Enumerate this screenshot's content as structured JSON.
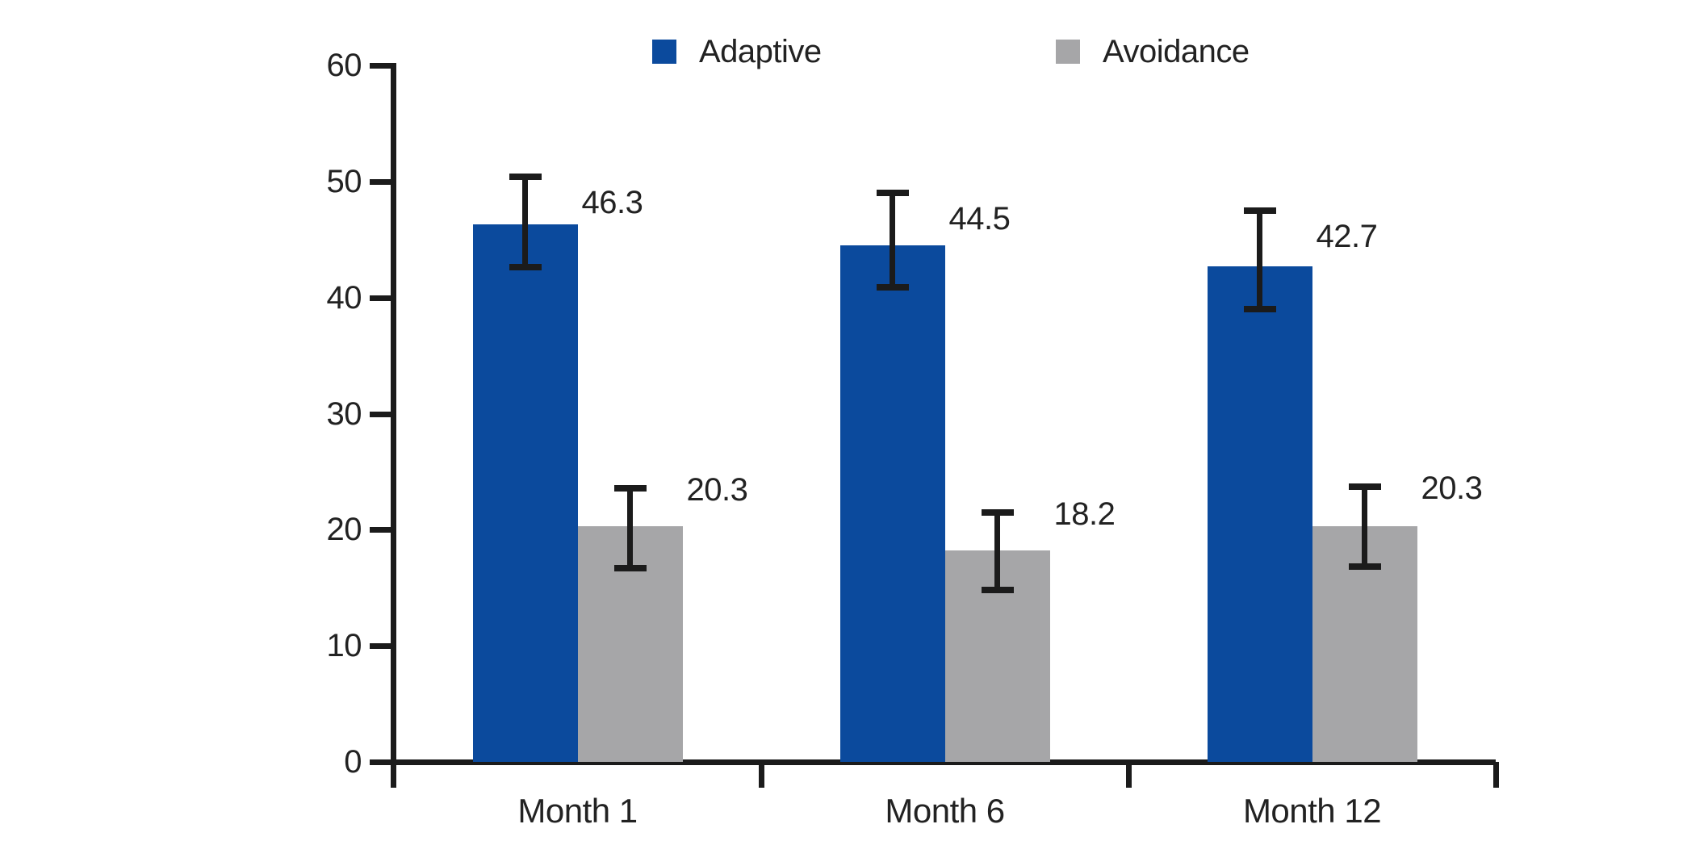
{
  "chart_data": {
    "type": "bar",
    "title": "",
    "xlabel": "",
    "ylabel": "",
    "categories": [
      "Month 1",
      "Month 6",
      "Month 12"
    ],
    "series": [
      {
        "name": "Adaptive",
        "color": "#0b4a9d",
        "values": [
          46.3,
          44.5,
          42.7
        ],
        "error_low": [
          42.6,
          40.9,
          39.0
        ],
        "error_high": [
          50.4,
          49.0,
          47.5
        ]
      },
      {
        "name": "Avoidance",
        "color": "#a6a6a8",
        "values": [
          20.3,
          18.2,
          20.3
        ],
        "error_low": [
          16.7,
          14.8,
          16.8
        ],
        "error_high": [
          23.6,
          21.5,
          23.7
        ]
      }
    ],
    "value_labels": [
      [
        "46.3",
        "44.5",
        "42.7"
      ],
      [
        "20.3",
        "18.2",
        "20.3"
      ]
    ],
    "ylim": [
      0,
      60
    ],
    "yticks": [
      "0",
      "10",
      "20",
      "30",
      "40",
      "50",
      "60"
    ],
    "grid": false,
    "error_bars": true,
    "legend_position": "top"
  },
  "colors": {
    "adaptive": "#0b4a9d",
    "avoidance": "#a6a6a8",
    "axis": "#1b1b1b",
    "text": "#222222",
    "background": "#ffffff"
  }
}
